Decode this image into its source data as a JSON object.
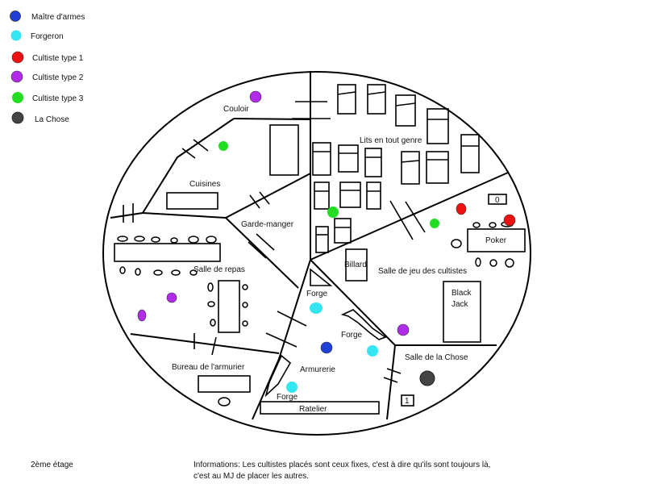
{
  "legend": {
    "items": [
      {
        "label": "Maître d'armes",
        "color": "#1f3fd6"
      },
      {
        "label": "Forgeron",
        "color": "#33e6f2"
      },
      {
        "label": "Cultiste type 1",
        "color": "#ee1111"
      },
      {
        "label": "Cultiste type 2",
        "color": "#b12ce8"
      },
      {
        "label": "Cultiste type 3",
        "color": "#22dd22"
      },
      {
        "label": "La Chose",
        "color": "#444444"
      }
    ]
  },
  "rooms": {
    "couloir": "Couloir",
    "lits": "Lits en tout genre",
    "cuisines": "Cuisines",
    "garde_manger": "Garde-manger",
    "salle_repas": "Salle de repas",
    "billard": "Billard",
    "salle_jeu": "Salle de jeu des cultistes",
    "poker": "Poker",
    "black_jack_1": "Black",
    "black_jack_2": "Jack",
    "forge_1": "Forge",
    "forge_2": "Forge",
    "forge_3": "Forge",
    "armurerie": "Armurerie",
    "salle_chose": "Salle de la Chose",
    "bureau": "Bureau de l'armurier",
    "ratelier": "Ratelier",
    "counter_0": "0",
    "counter_1": "1"
  },
  "footer": {
    "floor": "2ème étage",
    "info_line1": "Informations: Les cultistes placés sont ceux fixes, c'est à dire qu'ils sont toujours là,",
    "info_line2": "c'est au MJ de placer les autres."
  }
}
